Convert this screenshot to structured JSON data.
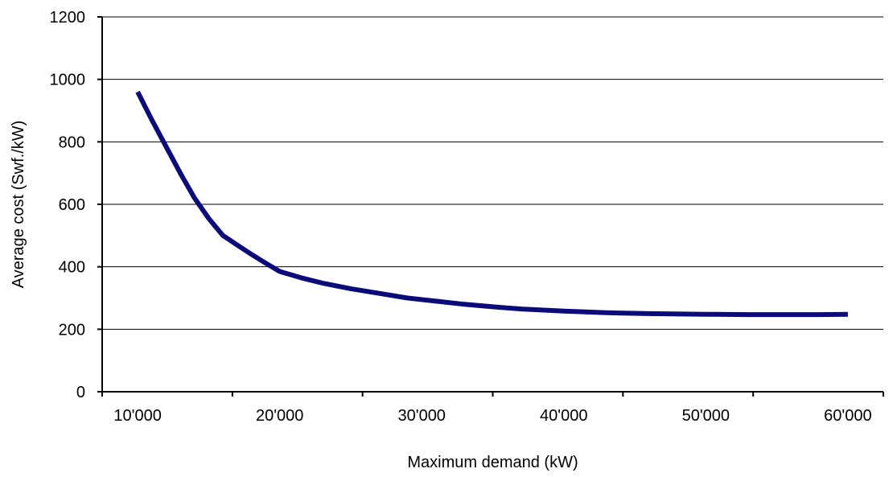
{
  "chart_data": {
    "type": "line",
    "title": "",
    "xlabel": "Maximum demand (kW)",
    "ylabel": "Average cost (Swf./kW)",
    "xlim": [
      7500,
      62500
    ],
    "ylim": [
      0,
      1200
    ],
    "x_ticks": [
      10000,
      20000,
      30000,
      40000,
      50000,
      60000
    ],
    "x_tick_labels": [
      "10'000",
      "20'000",
      "30'000",
      "40'000",
      "50'000",
      "60'000"
    ],
    "y_ticks": [
      0,
      200,
      400,
      600,
      800,
      1000,
      1200
    ],
    "y_tick_labels": [
      "0",
      "200",
      "400",
      "600",
      "800",
      "1000",
      "1200"
    ],
    "grid": "horizontal",
    "legend": "none",
    "series": [
      {
        "color": "#0a0a78",
        "points": [
          [
            10000,
            960
          ],
          [
            11000,
            870
          ],
          [
            12000,
            785
          ],
          [
            13000,
            700
          ],
          [
            14000,
            620
          ],
          [
            15000,
            555
          ],
          [
            16000,
            500
          ],
          [
            17000,
            470
          ],
          [
            18000,
            440
          ],
          [
            19000,
            412
          ],
          [
            20000,
            385
          ],
          [
            21500,
            365
          ],
          [
            23000,
            348
          ],
          [
            25000,
            330
          ],
          [
            27000,
            315
          ],
          [
            29000,
            300
          ],
          [
            31000,
            290
          ],
          [
            33000,
            280
          ],
          [
            35000,
            272
          ],
          [
            37000,
            265
          ],
          [
            40000,
            258
          ],
          [
            43000,
            253
          ],
          [
            46000,
            250
          ],
          [
            50000,
            248
          ],
          [
            53000,
            247
          ],
          [
            56000,
            247
          ],
          [
            58000,
            247
          ],
          [
            60000,
            248
          ]
        ]
      }
    ]
  }
}
